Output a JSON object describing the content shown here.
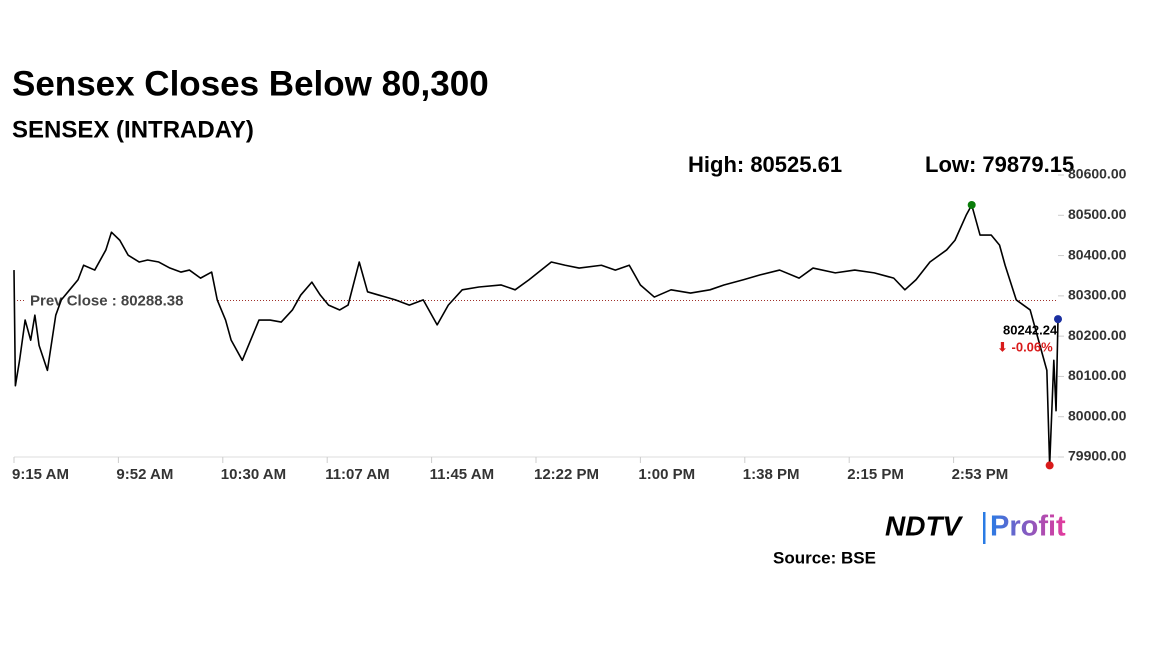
{
  "chart_data": {
    "type": "line",
    "title": "Sensex Closes Below 80,300",
    "subtitle": "SENSEX (INTRADAY)",
    "high_label": "High: 80525.61",
    "low_label": "Low: 79879.15",
    "prev_close": {
      "value": 80288.38,
      "label": "Prev Close : 80288.38"
    },
    "last_label": "80242.24",
    "change_label": "⬇ -0.06%",
    "source": "Source: BSE",
    "logo": {
      "left": "NDTV",
      "right": "Profit"
    },
    "x": [
      555,
      555.5,
      557,
      559,
      561,
      562.5,
      564,
      567,
      570,
      572,
      575,
      578,
      580,
      584,
      588,
      590,
      593,
      596,
      600,
      603,
      607,
      611,
      615,
      618,
      622,
      626,
      628,
      631,
      633,
      637,
      640,
      643,
      647,
      651,
      655,
      658,
      662,
      665,
      668,
      672,
      675,
      679,
      682,
      686,
      692,
      697,
      702,
      707,
      711,
      716,
      722,
      730,
      735,
      740,
      748,
      753,
      758,
      766,
      771,
      776,
      780,
      785,
      791,
      798,
      805,
      810,
      817,
      823,
      830,
      837,
      842,
      850,
      857,
      864,
      871,
      875,
      879,
      884,
      890,
      893,
      897,
      899,
      902,
      906,
      909,
      911,
      915,
      920,
      922,
      926,
      927,
      928.5,
      929.3,
      930
    ],
    "series": [
      {
        "name": "SENSEX",
        "color": "#000000",
        "values": [
          80364,
          80077,
          80140,
          80240,
          80190,
          80252,
          80177,
          80115,
          80252,
          80290,
          80315,
          80340,
          80376,
          80364,
          80414,
          80458,
          80438,
          80401,
          80384,
          80389,
          80384,
          80369,
          80359,
          80364,
          80344,
          80359,
          80290,
          80240,
          80190,
          80140,
          80190,
          80240,
          80240,
          80235,
          80265,
          80302,
          80334,
          80302,
          80277,
          80265,
          80277,
          80384,
          80310,
          80302,
          80290,
          80277,
          80290,
          80228,
          80277,
          80315,
          80322,
          80327,
          80315,
          80340,
          80384,
          80376,
          80369,
          80376,
          80364,
          80376,
          80327,
          80297,
          80315,
          80307,
          80315,
          80327,
          80340,
          80352,
          80364,
          80344,
          80369,
          80357,
          80364,
          80357,
          80344,
          80315,
          80340,
          80384,
          80414,
          80438,
          80500,
          80525.61,
          80451,
          80451,
          80426,
          80376,
          80290,
          80265,
          80215,
          80115,
          79879.15,
          80140,
          80015,
          80242.24
        ]
      }
    ],
    "xlim": [
      555,
      930
    ],
    "xticks": [
      {
        "value": 555,
        "label": "9:15 AM"
      },
      {
        "value": 592.5,
        "label": "9:52 AM"
      },
      {
        "value": 630,
        "label": "10:30 AM"
      },
      {
        "value": 667.5,
        "label": "11:07 AM"
      },
      {
        "value": 705,
        "label": "11:45 AM"
      },
      {
        "value": 742.5,
        "label": "12:22 PM"
      },
      {
        "value": 780,
        "label": "1:00 PM"
      },
      {
        "value": 817.5,
        "label": "1:38 PM"
      },
      {
        "value": 855,
        "label": "2:15 PM"
      },
      {
        "value": 892.5,
        "label": "2:53 PM"
      }
    ],
    "ylim": [
      79900,
      80600
    ],
    "yticks": [
      {
        "value": 79900,
        "label": "79900.00"
      },
      {
        "value": 80000,
        "label": "80000.00"
      },
      {
        "value": 80100,
        "label": "80100.00"
      },
      {
        "value": 80200,
        "label": "80200.00"
      },
      {
        "value": 80300,
        "label": "80300.00"
      },
      {
        "value": 80400,
        "label": "80400.00"
      },
      {
        "value": 80500,
        "label": "80500.00"
      },
      {
        "value": 80600,
        "label": "80600.00"
      }
    ],
    "high_color": "#0a7d0a",
    "low_color": "#d91a1a",
    "last_color": "#1a2fa0",
    "prev_close_color": "#a0302a"
  }
}
